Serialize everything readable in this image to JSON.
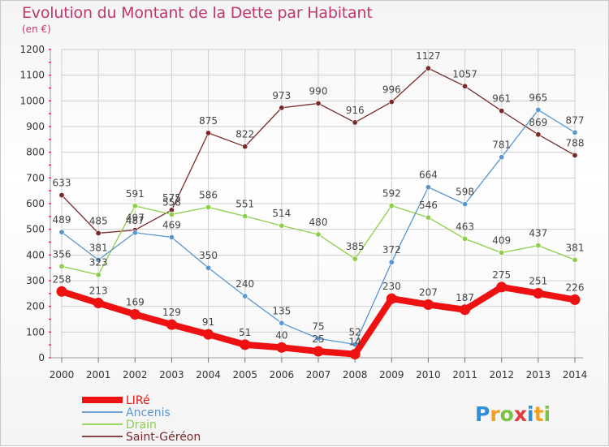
{
  "header": {
    "title": "Evolution du Montant de la Dette par Habitant",
    "subtitle": "(en €)"
  },
  "colors": {
    "title": "#c0386e",
    "grid": "#cfcfcf",
    "axis_tick": "#e0306e"
  },
  "chart_data": {
    "type": "line",
    "x": [
      "2000",
      "2001",
      "2002",
      "2003",
      "2004",
      "2005",
      "2006",
      "2007",
      "2008",
      "2009",
      "2010",
      "2011",
      "2012",
      "2013",
      "2014"
    ],
    "ylim": [
      0,
      1200
    ],
    "yticks": [
      0,
      100,
      200,
      300,
      400,
      500,
      600,
      700,
      800,
      900,
      1000,
      1100,
      1200
    ],
    "grid": true,
    "legend_position": "bottom-left",
    "series": [
      {
        "name": "Saint-Géréon",
        "color": "#7a2a2a",
        "width": 1.3,
        "dot": 3.2,
        "values": [
          633,
          485,
          497,
          575,
          875,
          822,
          973,
          990,
          916,
          996,
          1127,
          1057,
          961,
          869,
          788
        ]
      },
      {
        "name": "Drain",
        "color": "#8ccf4a",
        "width": 1.3,
        "dot": 3.2,
        "values": [
          356,
          323,
          591,
          558,
          586,
          551,
          514,
          480,
          385,
          592,
          546,
          463,
          409,
          437,
          381
        ]
      },
      {
        "name": "Ancenis",
        "color": "#5a96d0",
        "width": 1.3,
        "dot": 3.2,
        "values": [
          489,
          381,
          487,
          469,
          350,
          240,
          135,
          75,
          52,
          372,
          664,
          598,
          781,
          965,
          877
        ]
      },
      {
        "name": "LIRé",
        "color": "#ee1111",
        "width": 8,
        "dot": 6.5,
        "values": [
          258,
          213,
          169,
          129,
          91,
          51,
          40,
          25,
          14,
          230,
          207,
          187,
          275,
          251,
          226
        ]
      }
    ],
    "legend_order": [
      "LIRé",
      "Ancenis",
      "Drain",
      "Saint-Géréon"
    ]
  },
  "logo": {
    "letters": [
      "P",
      "r",
      "o",
      "x",
      "i",
      "t",
      "i"
    ],
    "colors": [
      "#2d8fd8",
      "#f2a020",
      "#7cc242",
      "#e83a3a",
      "#2d8fd8",
      "#f2a020",
      "#7cc242"
    ]
  }
}
